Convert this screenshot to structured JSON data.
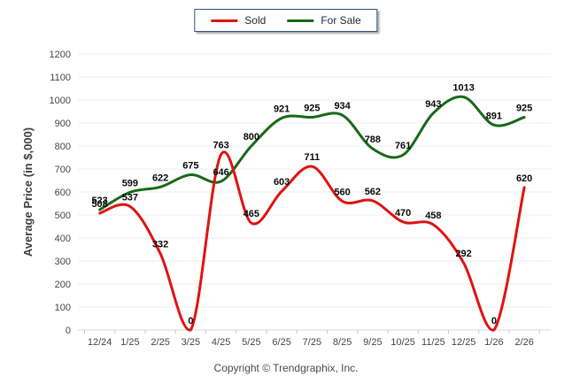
{
  "legend": {
    "items": [
      {
        "label": "Sold",
        "color": "#e01212"
      },
      {
        "label": "For Sale",
        "color": "#176917"
      }
    ]
  },
  "footer": {
    "copyright": "Copyright © Trendgraphix, Inc."
  },
  "chart_data": {
    "type": "line",
    "title": "",
    "xlabel": "",
    "ylabel": "Average Price (in $,000)",
    "categories": [
      "12/24",
      "1/25",
      "2/25",
      "3/25",
      "4/25",
      "5/25",
      "6/25",
      "7/25",
      "8/25",
      "9/25",
      "10/25",
      "11/25",
      "12/25",
      "1/26",
      "2/26"
    ],
    "series": [
      {
        "name": "Sold",
        "color": "#e01212",
        "values": [
          508,
          537,
          332,
          0,
          763,
          465,
          603,
          711,
          560,
          562,
          470,
          458,
          292,
          0,
          620
        ]
      },
      {
        "name": "For Sale",
        "color": "#176917",
        "values": [
          523,
          599,
          622,
          675,
          646,
          800,
          921,
          925,
          934,
          788,
          761,
          943,
          1013,
          891,
          925
        ]
      }
    ],
    "ylim": [
      0,
      1200
    ],
    "ytick_step": 100,
    "grid": true,
    "smooth": true,
    "data_labels": true,
    "legend_position": "top-center",
    "grid_color": "#ededed",
    "axis_color": "#d9d9d9",
    "tick_color": "#c9c9c9"
  }
}
